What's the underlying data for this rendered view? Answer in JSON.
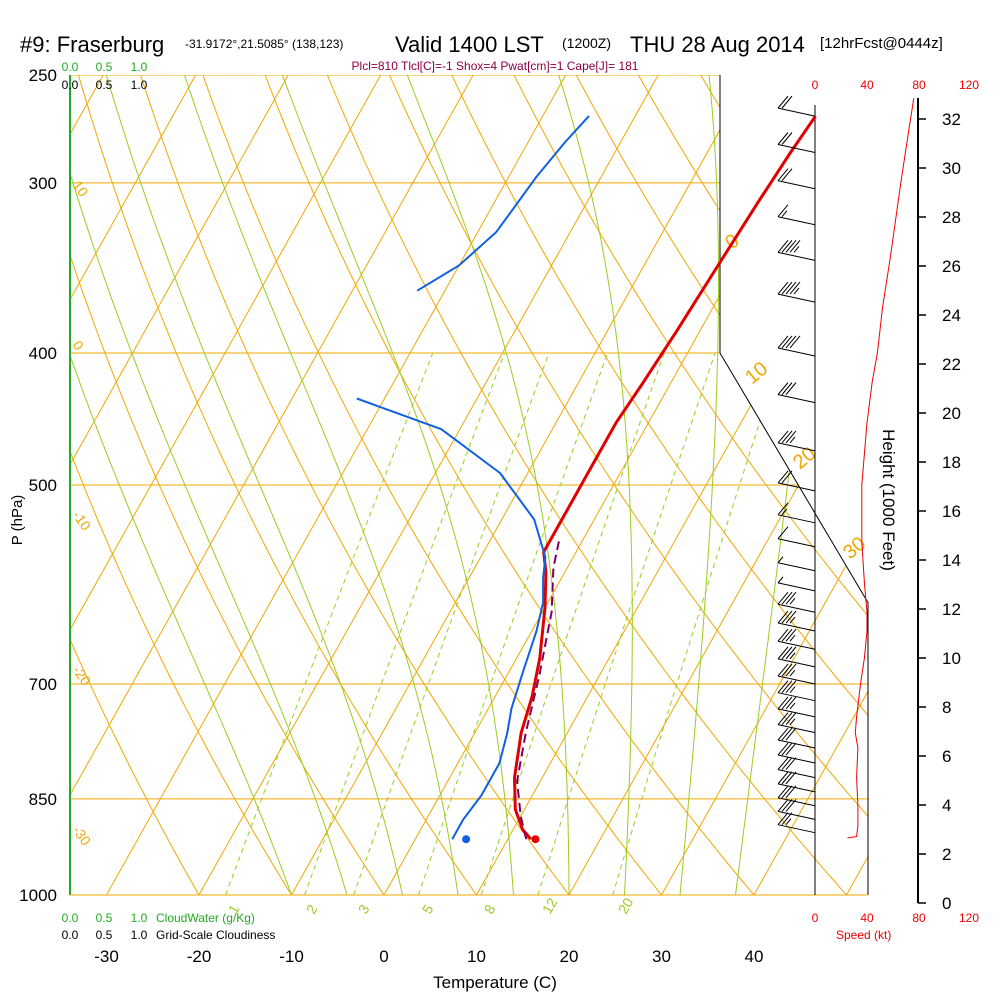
{
  "header": {
    "station": "#9: Fraserburg",
    "coords": "-31.9172°,21.5085° (138,123)",
    "valid": "Valid 1400 LST",
    "utc": "(1200Z)",
    "date": "THU 28 Aug 2014",
    "forecast": "[12hrFcst@0444z]",
    "indices": "Plcl=810 Tlcl[C]=-1 Shox=4 Pwat[cm]=1 Cape[J]= 181"
  },
  "chart_data": {
    "type": "line",
    "title": "#9: Fraserburg",
    "xlabel": "Temperature (C)",
    "ylabel": "P (hPa)",
    "right_label": "Height (1000 Feet)",
    "xlim": [
      -33,
      45
    ],
    "ylim": [
      1000,
      250
    ],
    "x_ticks": [
      -30,
      -20,
      -10,
      0,
      10,
      20,
      30,
      40
    ],
    "p_ticks": [
      250,
      300,
      400,
      500,
      700,
      850,
      1000
    ],
    "height_ticks": [
      0,
      2,
      4,
      6,
      8,
      10,
      12,
      14,
      16,
      18,
      20,
      22,
      24,
      26,
      28,
      30,
      32
    ],
    "speed_ticks": [
      0,
      40,
      80,
      120
    ],
    "speed_label": "Speed (kt)",
    "cloud_ticks": [
      "0.0",
      "0.5",
      "1.0"
    ],
    "cloudwater_label": "CloudWater (g/Kg)",
    "cloudiness_label": "Grid-Scale Cloudiness",
    "isotherm_labels": [
      "10",
      "0",
      "-10",
      "-20",
      "-30"
    ],
    "dry_adiabat_labels": [
      "0",
      "10",
      "20",
      "30"
    ],
    "mixing_ratio_labels": [
      "1",
      "2",
      "3",
      "5",
      "8",
      "12",
      "20"
    ],
    "series": [
      {
        "name": "Temperature",
        "color": "#e00000",
        "points": [
          [
            12.5,
            910
          ],
          [
            11,
            895
          ],
          [
            9,
            865
          ],
          [
            7,
            820
          ],
          [
            5,
            760
          ],
          [
            4,
            715
          ],
          [
            2.5,
            670
          ],
          [
            0,
            615
          ],
          [
            -2,
            580
          ],
          [
            -3.5,
            560
          ],
          [
            -3.5,
            500
          ],
          [
            -3.5,
            450
          ],
          [
            -3,
            420
          ],
          [
            -2.5,
            385
          ],
          [
            -2,
            345
          ],
          [
            -1.5,
            310
          ],
          [
            -1,
            285
          ],
          [
            -0.5,
            268
          ]
        ]
      },
      {
        "name": "Dew point",
        "color": "#1060e0",
        "points": [
          [
            4,
            910
          ],
          [
            4,
            880
          ],
          [
            4.5,
            845
          ],
          [
            4.5,
            800
          ],
          [
            3.5,
            760
          ],
          [
            2.5,
            730
          ],
          [
            1.5,
            685
          ],
          [
            0.5,
            640
          ],
          [
            -0.5,
            610
          ],
          [
            -2,
            585
          ],
          [
            -3,
            565
          ],
          [
            -6.5,
            530
          ],
          [
            -13,
            490
          ],
          [
            -22,
            455
          ],
          [
            -33,
            432
          ]
        ],
        "upper_points": [
          [
            -33,
            360
          ],
          [
            -30,
            345
          ],
          [
            -28,
            326
          ],
          [
            -27,
            297
          ],
          [
            -26,
            280
          ],
          [
            -25,
            268
          ]
        ]
      },
      {
        "name": "Parcel",
        "color": "#800060",
        "style": "dashed",
        "points": [
          [
            12,
            910
          ],
          [
            10,
            875
          ],
          [
            7.5,
            825
          ],
          [
            5.5,
            760
          ],
          [
            3.5,
            690
          ],
          [
            1,
            620
          ],
          [
            -1.5,
            575
          ],
          [
            -2.5,
            550
          ]
        ]
      }
    ],
    "surface_markers": {
      "temperature": 13,
      "dewpoint": 5.5,
      "pressure": 910
    },
    "wind_speed_profile_kt": [
      [
        908,
        25
      ],
      [
        906,
        32
      ],
      [
        890,
        33
      ],
      [
        860,
        33
      ],
      [
        820,
        32
      ],
      [
        780,
        33
      ],
      [
        760,
        31
      ],
      [
        740,
        32
      ],
      [
        700,
        35
      ],
      [
        670,
        38
      ],
      [
        640,
        40
      ],
      [
        620,
        40
      ],
      [
        590,
        38
      ],
      [
        550,
        36
      ],
      [
        500,
        36
      ],
      [
        450,
        40
      ],
      [
        420,
        44
      ],
      [
        400,
        48
      ],
      [
        370,
        52
      ],
      [
        340,
        58
      ],
      [
        300,
        66
      ],
      [
        275,
        72
      ],
      [
        260,
        76
      ]
    ],
    "wind_barbs": [
      {
        "p": 268,
        "spd": 20
      },
      {
        "p": 285,
        "spd": 20
      },
      {
        "p": 303,
        "spd": 20
      },
      {
        "p": 322,
        "spd": 15
      },
      {
        "p": 342,
        "spd": 45
      },
      {
        "p": 367,
        "spd": 45
      },
      {
        "p": 402,
        "spd": 40
      },
      {
        "p": 435,
        "spd": 30
      },
      {
        "p": 472,
        "spd": 35
      },
      {
        "p": 505,
        "spd": 20
      },
      {
        "p": 533,
        "spd": 15
      },
      {
        "p": 555,
        "spd": 10
      },
      {
        "p": 578,
        "spd": 5
      },
      {
        "p": 598,
        "spd": 5
      },
      {
        "p": 620,
        "spd": 35
      },
      {
        "p": 640,
        "spd": 35
      },
      {
        "p": 660,
        "spd": 35
      },
      {
        "p": 680,
        "spd": 35
      },
      {
        "p": 700,
        "spd": 35
      },
      {
        "p": 720,
        "spd": 35
      },
      {
        "p": 740,
        "spd": 35
      },
      {
        "p": 760,
        "spd": 35
      },
      {
        "p": 780,
        "spd": 30
      },
      {
        "p": 800,
        "spd": 30
      },
      {
        "p": 820,
        "spd": 30
      },
      {
        "p": 840,
        "spd": 30
      },
      {
        "p": 860,
        "spd": 30
      },
      {
        "p": 880,
        "spd": 30
      },
      {
        "p": 900,
        "spd": 25
      }
    ],
    "colors": {
      "isotherm": "#f0a800",
      "dry_adiabat": "#f0a800",
      "moist_adiabat": "#9ccc20",
      "mixing_ratio": "#9ccc20",
      "cloud": "#22aa22",
      "speed": "#ee0000",
      "indices": "#8b0045"
    }
  }
}
